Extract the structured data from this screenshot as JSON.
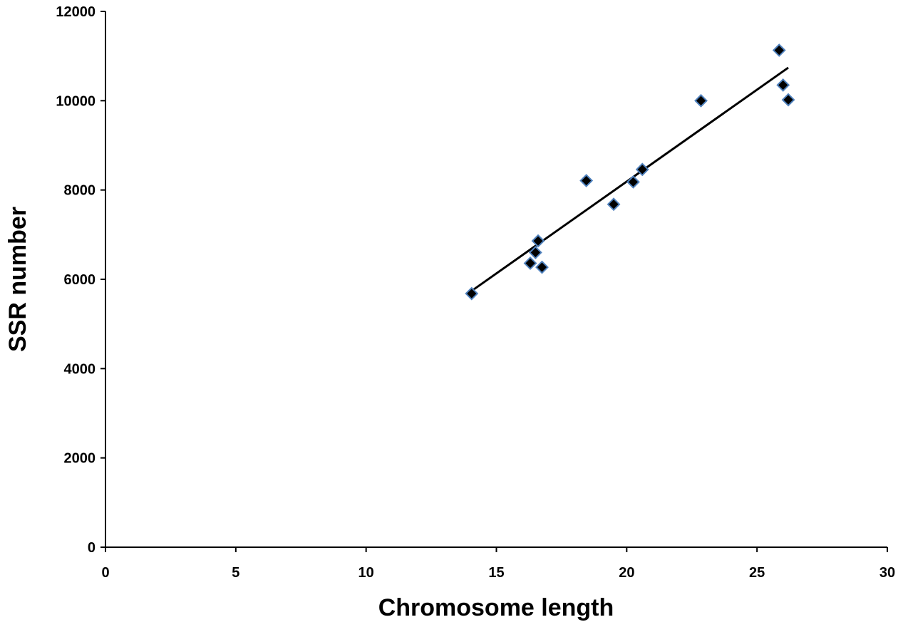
{
  "chart_data": {
    "type": "scatter",
    "xlabel": "Chromosome length",
    "ylabel": "SSR number",
    "xlim": [
      0,
      30
    ],
    "ylim": [
      0,
      12000
    ],
    "x_ticks": [
      0,
      5,
      10,
      15,
      20,
      25,
      30
    ],
    "y_ticks": [
      0,
      2000,
      4000,
      6000,
      8000,
      10000,
      12000
    ],
    "grid": false,
    "legend": "none",
    "marker": "diamond",
    "marker_color": "#000000",
    "marker_edge_color": "#4f81bd",
    "trendline_color": "#000000",
    "points": [
      {
        "x": 14.05,
        "y": 5680
      },
      {
        "x": 16.3,
        "y": 6360
      },
      {
        "x": 16.5,
        "y": 6600
      },
      {
        "x": 16.6,
        "y": 6860
      },
      {
        "x": 16.75,
        "y": 6270
      },
      {
        "x": 18.45,
        "y": 8210
      },
      {
        "x": 19.5,
        "y": 7680
      },
      {
        "x": 20.25,
        "y": 8180
      },
      {
        "x": 20.6,
        "y": 8460
      },
      {
        "x": 22.85,
        "y": 10000
      },
      {
        "x": 25.85,
        "y": 11130
      },
      {
        "x": 26.0,
        "y": 10350
      },
      {
        "x": 26.2,
        "y": 10020
      }
    ],
    "trendline": {
      "x": [
        14.0,
        26.2
      ],
      "y": [
        5720,
        10740
      ]
    }
  }
}
